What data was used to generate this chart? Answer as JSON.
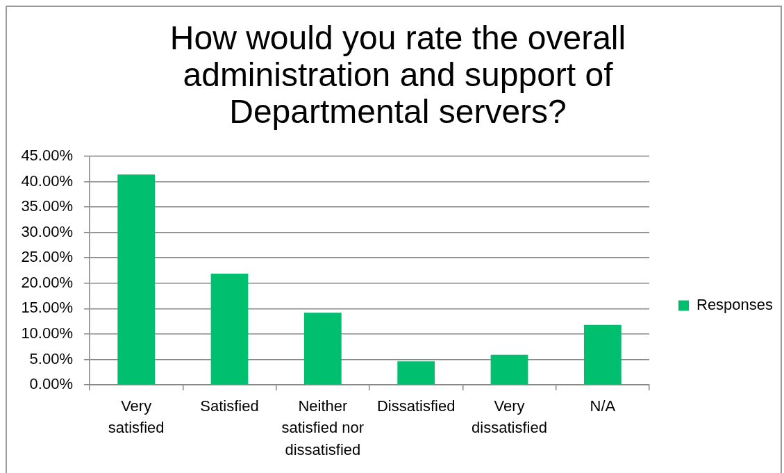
{
  "chart_data": {
    "type": "bar",
    "title": "How would you rate the overall administration and support of Departmental servers?",
    "categories": [
      "Very satisfied",
      "Satisfied",
      "Neither satisfied nor dissatisfied",
      "Dissatisfied",
      "Very dissatisfied",
      "N/A"
    ],
    "series": [
      {
        "name": "Responses",
        "color": "#00bf6f",
        "values": [
          41.4,
          21.9,
          14.2,
          4.6,
          5.9,
          11.8
        ]
      }
    ],
    "ylim": [
      0,
      45
    ],
    "yticks": [
      {
        "value": 0,
        "label": "0.00%"
      },
      {
        "value": 5,
        "label": "5.00%"
      },
      {
        "value": 10,
        "label": "10.00%"
      },
      {
        "value": 15,
        "label": "15.00%"
      },
      {
        "value": 20,
        "label": "20.00%"
      },
      {
        "value": 25,
        "label": "25.00%"
      },
      {
        "value": 30,
        "label": "30.00%"
      },
      {
        "value": 35,
        "label": "35.00%"
      },
      {
        "value": 40,
        "label": "40.00%"
      },
      {
        "value": 45,
        "label": "45.00%"
      }
    ],
    "grid": "y",
    "legend": "right"
  }
}
